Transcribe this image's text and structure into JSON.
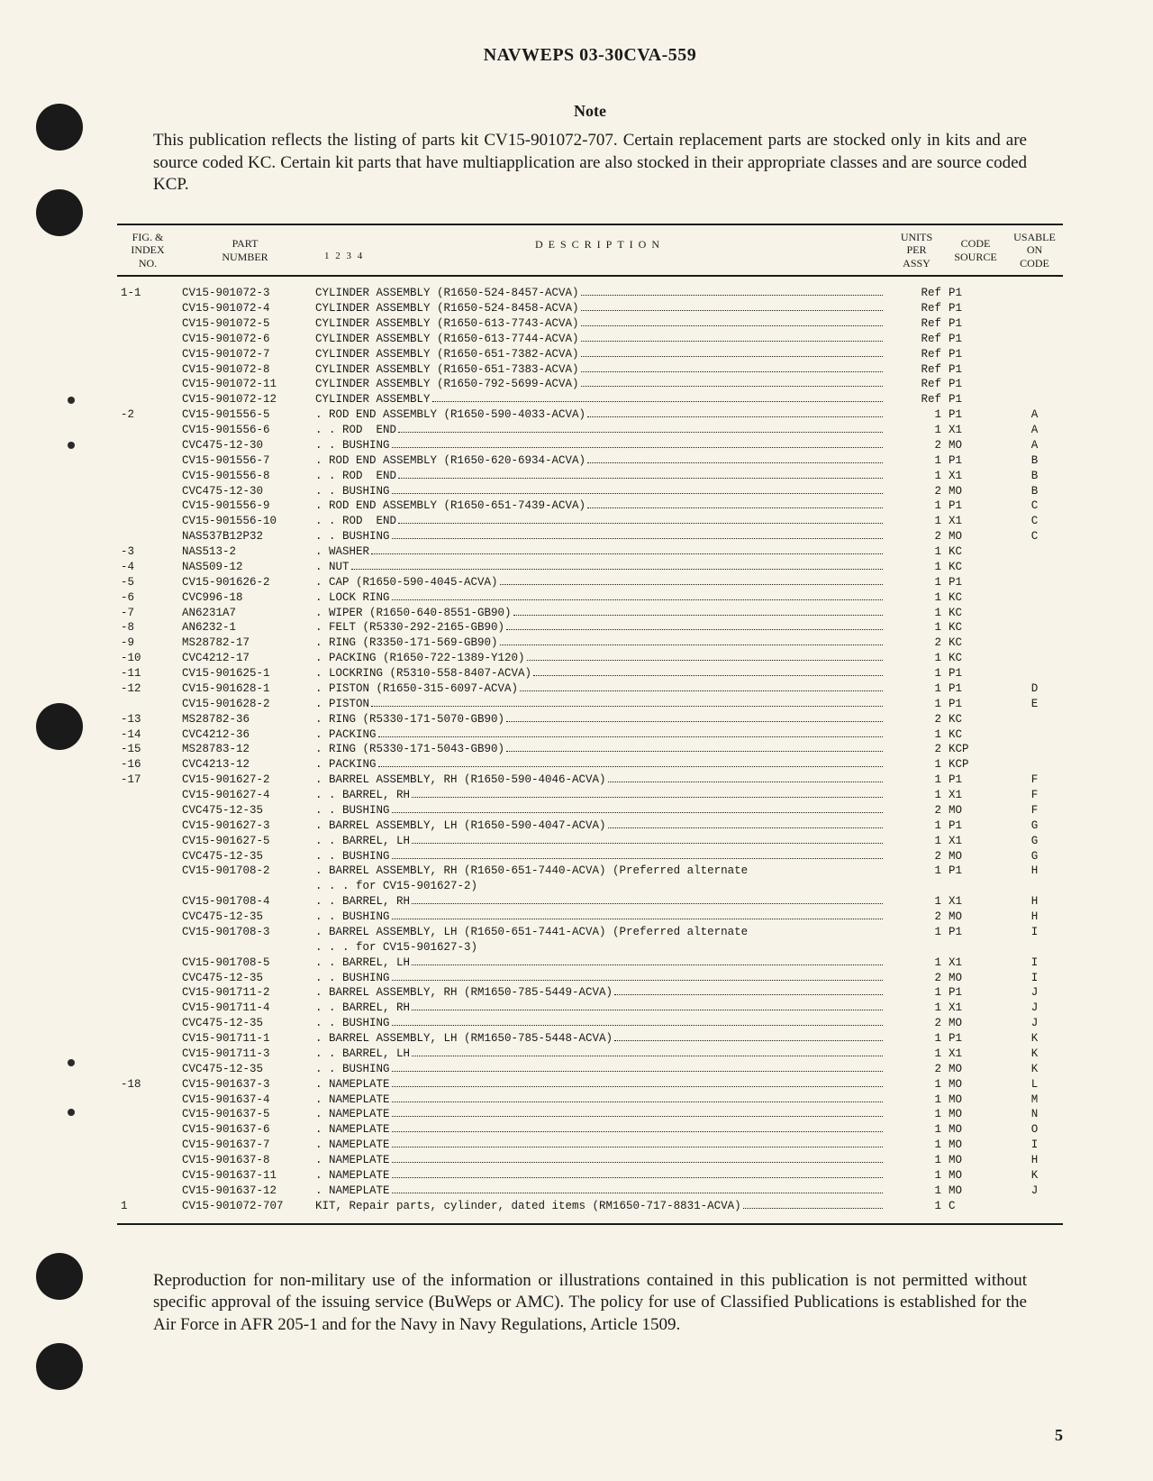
{
  "header": {
    "title": "NAVWEPS 03-30CVA-559"
  },
  "note": {
    "title": "Note",
    "body": "This publication reflects the listing of parts kit CV15-901072-707. Certain replacement parts are stocked only in kits and are source coded KC. Certain kit parts that have multiapplication are also stocked in their appropriate classes and are source coded KCP."
  },
  "columns": {
    "fig": "FIG. &\nINDEX\nNO.",
    "part": "PART\nNUMBER",
    "desc": "DESCRIPTION",
    "desc_sub": "1 2 3 4",
    "units": "UNITS\nPER\nASSY",
    "code": "CODE\nSOURCE",
    "usable": "USABLE\nON\nCODE"
  },
  "rows": [
    {
      "idx": "1-1",
      "part": "CV15-901072-3",
      "ind": 0,
      "d": "CYLINDER ASSEMBLY (R1650-524-8457-ACVA)",
      "u": "Ref",
      "c": "P1",
      "on": ""
    },
    {
      "idx": "",
      "part": "CV15-901072-4",
      "ind": 0,
      "d": "CYLINDER ASSEMBLY (R1650-524-8458-ACVA)",
      "u": "Ref",
      "c": "P1",
      "on": ""
    },
    {
      "idx": "",
      "part": "CV15-901072-5",
      "ind": 0,
      "d": "CYLINDER ASSEMBLY (R1650-613-7743-ACVA)",
      "u": "Ref",
      "c": "P1",
      "on": ""
    },
    {
      "idx": "",
      "part": "CV15-901072-6",
      "ind": 0,
      "d": "CYLINDER ASSEMBLY (R1650-613-7744-ACVA)",
      "u": "Ref",
      "c": "P1",
      "on": ""
    },
    {
      "idx": "",
      "part": "CV15-901072-7",
      "ind": 0,
      "d": "CYLINDER ASSEMBLY (R1650-651-7382-ACVA)",
      "u": "Ref",
      "c": "P1",
      "on": ""
    },
    {
      "idx": "",
      "part": "CV15-901072-8",
      "ind": 0,
      "d": "CYLINDER ASSEMBLY (R1650-651-7383-ACVA)",
      "u": "Ref",
      "c": "P1",
      "on": ""
    },
    {
      "idx": "",
      "part": "CV15-901072-11",
      "ind": 0,
      "d": "CYLINDER ASSEMBLY (R1650-792-5699-ACVA)",
      "u": "Ref",
      "c": "P1",
      "on": ""
    },
    {
      "idx": "",
      "part": "CV15-901072-12",
      "ind": 0,
      "d": "CYLINDER ASSEMBLY",
      "u": "Ref",
      "c": "P1",
      "on": ""
    },
    {
      "idx": "-2",
      "part": "CV15-901556-5",
      "ind": 1,
      "d": "ROD END ASSEMBLY (R1650-590-4033-ACVA)",
      "u": "1",
      "c": "P1",
      "on": "A"
    },
    {
      "idx": "",
      "part": "CV15-901556-6",
      "ind": 2,
      "d": "ROD  END",
      "u": "1",
      "c": "X1",
      "on": "A"
    },
    {
      "idx": "",
      "part": "CVC475-12-30",
      "ind": 2,
      "d": "BUSHING",
      "u": "2",
      "c": "MO",
      "on": "A"
    },
    {
      "idx": "",
      "part": "CV15-901556-7",
      "ind": 1,
      "d": "ROD END ASSEMBLY (R1650-620-6934-ACVA)",
      "u": "1",
      "c": "P1",
      "on": "B"
    },
    {
      "idx": "",
      "part": "CV15-901556-8",
      "ind": 2,
      "d": "ROD  END",
      "u": "1",
      "c": "X1",
      "on": "B"
    },
    {
      "idx": "",
      "part": "CVC475-12-30",
      "ind": 2,
      "d": "BUSHING",
      "u": "2",
      "c": "MO",
      "on": "B"
    },
    {
      "idx": "",
      "part": "CV15-901556-9",
      "ind": 1,
      "d": "ROD END ASSEMBLY (R1650-651-7439-ACVA)",
      "u": "1",
      "c": "P1",
      "on": "C"
    },
    {
      "idx": "",
      "part": "CV15-901556-10",
      "ind": 2,
      "d": "ROD  END",
      "u": "1",
      "c": "X1",
      "on": "C"
    },
    {
      "idx": "",
      "part": "NAS537B12P32",
      "ind": 2,
      "d": "BUSHING",
      "u": "2",
      "c": "MO",
      "on": "C"
    },
    {
      "idx": "-3",
      "part": "NAS513-2",
      "ind": 1,
      "d": "WASHER",
      "u": "1",
      "c": "KC",
      "on": ""
    },
    {
      "idx": "-4",
      "part": "NAS509-12",
      "ind": 1,
      "d": "NUT",
      "u": "1",
      "c": "KC",
      "on": ""
    },
    {
      "idx": "-5",
      "part": "CV15-901626-2",
      "ind": 1,
      "d": "CAP (R1650-590-4045-ACVA)",
      "u": "1",
      "c": "P1",
      "on": ""
    },
    {
      "idx": "-6",
      "part": "CVC996-18",
      "ind": 1,
      "d": "LOCK RING",
      "u": "1",
      "c": "KC",
      "on": ""
    },
    {
      "idx": "-7",
      "part": "AN6231A7",
      "ind": 1,
      "d": "WIPER (R1650-640-8551-GB90)",
      "u": "1",
      "c": "KC",
      "on": ""
    },
    {
      "idx": "-8",
      "part": "AN6232-1",
      "ind": 1,
      "d": "FELT (R5330-292-2165-GB90)",
      "u": "1",
      "c": "KC",
      "on": ""
    },
    {
      "idx": "-9",
      "part": "MS28782-17",
      "ind": 1,
      "d": "RING (R3350-171-569-GB90)",
      "u": "2",
      "c": "KC",
      "on": ""
    },
    {
      "idx": "-10",
      "part": "CVC4212-17",
      "ind": 1,
      "d": "PACKING (R1650-722-1389-Y120)",
      "u": "1",
      "c": "KC",
      "on": ""
    },
    {
      "idx": "-11",
      "part": "CV15-901625-1",
      "ind": 1,
      "d": "LOCKRING (R5310-558-8407-ACVA)",
      "u": "1",
      "c": "P1",
      "on": ""
    },
    {
      "idx": "-12",
      "part": "CV15-901628-1",
      "ind": 1,
      "d": "PISTON (R1650-315-6097-ACVA)",
      "u": "1",
      "c": "P1",
      "on": "D"
    },
    {
      "idx": "",
      "part": "CV15-901628-2",
      "ind": 1,
      "d": "PISTON",
      "u": "1",
      "c": "P1",
      "on": "E"
    },
    {
      "idx": "-13",
      "part": "MS28782-36",
      "ind": 1,
      "d": "RING (R5330-171-5070-GB90)",
      "u": "2",
      "c": "KC",
      "on": ""
    },
    {
      "idx": "-14",
      "part": "CVC4212-36",
      "ind": 1,
      "d": "PACKING",
      "u": "1",
      "c": "KC",
      "on": ""
    },
    {
      "idx": "-15",
      "part": "MS28783-12",
      "ind": 1,
      "d": "RING (R5330-171-5043-GB90)",
      "u": "2",
      "c": "KCP",
      "on": ""
    },
    {
      "idx": "-16",
      "part": "CVC4213-12",
      "ind": 1,
      "d": "PACKING",
      "u": "1",
      "c": "KCP",
      "on": ""
    },
    {
      "idx": "-17",
      "part": "CV15-901627-2",
      "ind": 1,
      "d": "BARREL ASSEMBLY, RH (R1650-590-4046-ACVA)",
      "u": "1",
      "c": "P1",
      "on": "F"
    },
    {
      "idx": "",
      "part": "CV15-901627-4",
      "ind": 2,
      "d": "BARREL, RH",
      "u": "1",
      "c": "X1",
      "on": "F"
    },
    {
      "idx": "",
      "part": "CVC475-12-35",
      "ind": 2,
      "d": "BUSHING",
      "u": "2",
      "c": "MO",
      "on": "F"
    },
    {
      "idx": "",
      "part": "CV15-901627-3",
      "ind": 1,
      "d": "BARREL ASSEMBLY, LH (R1650-590-4047-ACVA)",
      "u": "1",
      "c": "P1",
      "on": "G"
    },
    {
      "idx": "",
      "part": "CV15-901627-5",
      "ind": 2,
      "d": "BARREL, LH",
      "u": "1",
      "c": "X1",
      "on": "G"
    },
    {
      "idx": "",
      "part": "CVC475-12-35",
      "ind": 2,
      "d": "BUSHING",
      "u": "2",
      "c": "MO",
      "on": "G"
    },
    {
      "idx": "",
      "part": "CV15-901708-2",
      "ind": 1,
      "d": "BARREL ASSEMBLY, RH (R1650-651-7440-ACVA) (Preferred alternate",
      "u": "1",
      "c": "P1",
      "on": "H",
      "nolead": true
    },
    {
      "idx": "",
      "part": "",
      "ind": 3,
      "d": "for CV15-901627-2)",
      "u": "",
      "c": "",
      "on": "",
      "nolead": true
    },
    {
      "idx": "",
      "part": "CV15-901708-4",
      "ind": 2,
      "d": "BARREL, RH",
      "u": "1",
      "c": "X1",
      "on": "H"
    },
    {
      "idx": "",
      "part": "CVC475-12-35",
      "ind": 2,
      "d": "BUSHING",
      "u": "2",
      "c": "MO",
      "on": "H"
    },
    {
      "idx": "",
      "part": "CV15-901708-3",
      "ind": 1,
      "d": "BARREL ASSEMBLY, LH (R1650-651-7441-ACVA) (Preferred alternate",
      "u": "1",
      "c": "P1",
      "on": "I",
      "nolead": true
    },
    {
      "idx": "",
      "part": "",
      "ind": 3,
      "d": "for CV15-901627-3)",
      "u": "",
      "c": "",
      "on": "",
      "nolead": true
    },
    {
      "idx": "",
      "part": "CV15-901708-5",
      "ind": 2,
      "d": "BARREL, LH",
      "u": "1",
      "c": "X1",
      "on": "I"
    },
    {
      "idx": "",
      "part": "CVC475-12-35",
      "ind": 2,
      "d": "BUSHING",
      "u": "2",
      "c": "MO",
      "on": "I"
    },
    {
      "idx": "",
      "part": "CV15-901711-2",
      "ind": 1,
      "d": "BARREL ASSEMBLY, RH (RM1650-785-5449-ACVA)",
      "u": "1",
      "c": "P1",
      "on": "J"
    },
    {
      "idx": "",
      "part": "CV15-901711-4",
      "ind": 2,
      "d": "BARREL, RH",
      "u": "1",
      "c": "X1",
      "on": "J"
    },
    {
      "idx": "",
      "part": "CVC475-12-35",
      "ind": 2,
      "d": "BUSHING",
      "u": "2",
      "c": "MO",
      "on": "J"
    },
    {
      "idx": "",
      "part": "CV15-901711-1",
      "ind": 1,
      "d": "BARREL ASSEMBLY, LH (RM1650-785-5448-ACVA)",
      "u": "1",
      "c": "P1",
      "on": "K"
    },
    {
      "idx": "",
      "part": "CV15-901711-3",
      "ind": 2,
      "d": "BARREL, LH",
      "u": "1",
      "c": "X1",
      "on": "K"
    },
    {
      "idx": "",
      "part": "CVC475-12-35",
      "ind": 2,
      "d": "BUSHING",
      "u": "2",
      "c": "MO",
      "on": "K"
    },
    {
      "idx": "-18",
      "part": "CV15-901637-3",
      "ind": 1,
      "d": "NAMEPLATE",
      "u": "1",
      "c": "MO",
      "on": "L"
    },
    {
      "idx": "",
      "part": "CV15-901637-4",
      "ind": 1,
      "d": "NAMEPLATE",
      "u": "1",
      "c": "MO",
      "on": "M"
    },
    {
      "idx": "",
      "part": "CV15-901637-5",
      "ind": 1,
      "d": "NAMEPLATE",
      "u": "1",
      "c": "MO",
      "on": "N"
    },
    {
      "idx": "",
      "part": "CV15-901637-6",
      "ind": 1,
      "d": "NAMEPLATE",
      "u": "1",
      "c": "MO",
      "on": "O"
    },
    {
      "idx": "",
      "part": "CV15-901637-7",
      "ind": 1,
      "d": "NAMEPLATE",
      "u": "1",
      "c": "MO",
      "on": "I"
    },
    {
      "idx": "",
      "part": "CV15-901637-8",
      "ind": 1,
      "d": "NAMEPLATE",
      "u": "1",
      "c": "MO",
      "on": "H"
    },
    {
      "idx": "",
      "part": "CV15-901637-11",
      "ind": 1,
      "d": "NAMEPLATE",
      "u": "1",
      "c": "MO",
      "on": "K"
    },
    {
      "idx": "",
      "part": "CV15-901637-12",
      "ind": 1,
      "d": "NAMEPLATE",
      "u": "1",
      "c": "MO",
      "on": "J"
    },
    {
      "idx": "1",
      "part": "CV15-901072-707",
      "ind": 0,
      "d": "KIT, Repair parts, cylinder, dated items (RM1650-717-8831-ACVA)",
      "u": "1",
      "c": "C",
      "on": ""
    }
  ],
  "footer": {
    "body": "Reproduction for non-military use of the information or illustrations contained in this publication is not permitted without specific approval of the issuing service (BuWeps or AMC). The policy for use of Classified Publications is established for the Air Force in AFR 205-1 and for the Navy in Navy Regulations, Article 1509."
  },
  "page_number": "5",
  "punch_positions": [
    115,
    210,
    780,
    1390,
    1490
  ],
  "small_dots": [
    440,
    490,
    1175,
    1230
  ]
}
